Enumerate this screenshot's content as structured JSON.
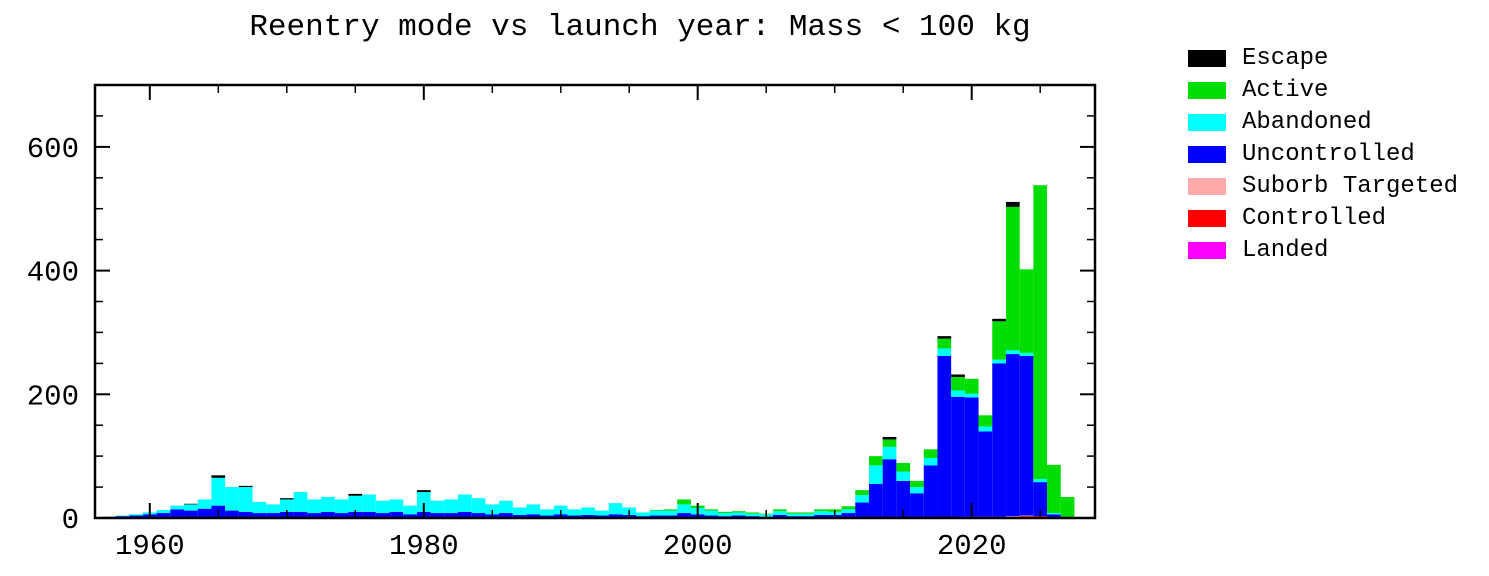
{
  "chart_data": {
    "type": "bar",
    "stacked": true,
    "title": "Reentry mode vs launch year: Mass < 100 kg",
    "xlabel": "",
    "ylabel": "",
    "xlim": [
      1956,
      2029
    ],
    "ylim": [
      0,
      700
    ],
    "x_ticks": [
      1960,
      1980,
      2000,
      2020
    ],
    "y_ticks": [
      0,
      200,
      400,
      600
    ],
    "x_minor_step": 5,
    "y_minor_step": 50,
    "grid": false,
    "legend_position": "right",
    "x": [
      1957,
      1958,
      1959,
      1960,
      1961,
      1962,
      1963,
      1964,
      1965,
      1966,
      1967,
      1968,
      1969,
      1970,
      1971,
      1972,
      1973,
      1974,
      1975,
      1976,
      1977,
      1978,
      1979,
      1980,
      1981,
      1982,
      1983,
      1984,
      1985,
      1986,
      1987,
      1988,
      1989,
      1990,
      1991,
      1992,
      1993,
      1994,
      1995,
      1996,
      1997,
      1998,
      1999,
      2000,
      2001,
      2002,
      2003,
      2004,
      2005,
      2006,
      2007,
      2008,
      2009,
      2010,
      2011,
      2012,
      2013,
      2014,
      2015,
      2016,
      2017,
      2018,
      2019,
      2020,
      2021,
      2022,
      2023,
      2024,
      2025,
      2026,
      2027
    ],
    "series": [
      {
        "name": "Landed",
        "color": "#ff00ff",
        "values": [
          0,
          0,
          0,
          0,
          0,
          0,
          0,
          0,
          0,
          0,
          0,
          0,
          0,
          0,
          0,
          0,
          0,
          0,
          0,
          0,
          0,
          0,
          0,
          0,
          0,
          0,
          0,
          0,
          0,
          0,
          0,
          0,
          0,
          0,
          0,
          0,
          0,
          0,
          0,
          0,
          0,
          0,
          0,
          0,
          0,
          0,
          0,
          0,
          0,
          0,
          0,
          0,
          0,
          0,
          0,
          0,
          0,
          0,
          0,
          0,
          0,
          0,
          0,
          0,
          0,
          0,
          0,
          1,
          1,
          0,
          0
        ]
      },
      {
        "name": "Controlled",
        "color": "#ff0000",
        "values": [
          0,
          0,
          0,
          0,
          0,
          0,
          0,
          0,
          0,
          0,
          0,
          0,
          0,
          0,
          0,
          0,
          0,
          0,
          0,
          0,
          0,
          0,
          0,
          0,
          0,
          0,
          0,
          0,
          0,
          0,
          0,
          0,
          0,
          0,
          0,
          0,
          0,
          0,
          0,
          0,
          0,
          0,
          0,
          0,
          0,
          0,
          0,
          0,
          0,
          0,
          0,
          0,
          0,
          0,
          0,
          0,
          0,
          0,
          0,
          0,
          0,
          0,
          0,
          2,
          2,
          2,
          2,
          2,
          2,
          0,
          0
        ]
      },
      {
        "name": "Suborb Targeted",
        "color": "#ffaaaa",
        "values": [
          0,
          0,
          0,
          0,
          0,
          0,
          0,
          0,
          0,
          0,
          0,
          0,
          0,
          0,
          0,
          0,
          0,
          0,
          0,
          0,
          0,
          0,
          0,
          0,
          0,
          0,
          0,
          0,
          0,
          0,
          0,
          0,
          0,
          0,
          0,
          0,
          0,
          0,
          0,
          0,
          0,
          0,
          0,
          0,
          0,
          0,
          0,
          0,
          0,
          0,
          0,
          0,
          0,
          0,
          0,
          0,
          0,
          0,
          0,
          0,
          0,
          0,
          0,
          0,
          0,
          0,
          1,
          1,
          0,
          0,
          0
        ]
      },
      {
        "name": "Uncontrolled",
        "color": "#0000ff",
        "values": [
          2,
          3,
          4,
          6,
          8,
          14,
          12,
          15,
          20,
          12,
          10,
          8,
          8,
          10,
          10,
          8,
          10,
          8,
          10,
          10,
          8,
          10,
          6,
          10,
          8,
          8,
          10,
          8,
          6,
          8,
          5,
          6,
          4,
          6,
          4,
          5,
          4,
          6,
          5,
          3,
          4,
          4,
          8,
          6,
          4,
          3,
          4,
          3,
          2,
          5,
          3,
          3,
          5,
          5,
          8,
          25,
          55,
          95,
          60,
          40,
          85,
          262,
          196,
          193,
          138,
          248,
          262,
          258,
          55,
          6,
          0
        ]
      },
      {
        "name": "Abandoned",
        "color": "#00ffff",
        "values": [
          0,
          1,
          2,
          3,
          5,
          6,
          10,
          15,
          45,
          38,
          40,
          18,
          14,
          20,
          32,
          22,
          24,
          22,
          26,
          28,
          20,
          20,
          14,
          32,
          20,
          22,
          28,
          24,
          16,
          20,
          12,
          16,
          10,
          14,
          10,
          12,
          8,
          18,
          12,
          6,
          8,
          8,
          14,
          10,
          8,
          5,
          5,
          4,
          4,
          6,
          4,
          4,
          6,
          5,
          6,
          12,
          30,
          20,
          15,
          10,
          12,
          12,
          10,
          6,
          8,
          6,
          6,
          5,
          5,
          2,
          0
        ]
      },
      {
        "name": "Active",
        "color": "#00dd00",
        "values": [
          0,
          0,
          0,
          0,
          0,
          0,
          0,
          0,
          0,
          0,
          0,
          0,
          0,
          0,
          0,
          0,
          0,
          0,
          0,
          0,
          0,
          0,
          0,
          0,
          0,
          0,
          0,
          0,
          0,
          0,
          0,
          0,
          0,
          0,
          0,
          0,
          0,
          0,
          0,
          0,
          1,
          2,
          8,
          4,
          2,
          2,
          2,
          2,
          1,
          3,
          2,
          2,
          3,
          4,
          5,
          8,
          15,
          12,
          14,
          10,
          14,
          16,
          22,
          24,
          18,
          62,
          232,
          135,
          475,
          78,
          34
        ]
      },
      {
        "name": "Escape",
        "color": "#000000",
        "values": [
          0,
          0,
          0,
          0,
          0,
          0,
          1,
          0,
          4,
          0,
          2,
          0,
          0,
          2,
          0,
          0,
          0,
          0,
          3,
          0,
          0,
          0,
          0,
          3,
          0,
          0,
          0,
          0,
          0,
          0,
          0,
          0,
          0,
          0,
          0,
          0,
          0,
          0,
          0,
          0,
          0,
          0,
          0,
          0,
          0,
          0,
          0,
          0,
          0,
          0,
          0,
          0,
          0,
          0,
          0,
          0,
          0,
          4,
          0,
          0,
          0,
          4,
          4,
          0,
          0,
          4,
          8,
          0,
          0,
          0,
          0
        ]
      }
    ]
  },
  "legend": {
    "items": [
      {
        "label": "Escape",
        "color": "#000000"
      },
      {
        "label": "Active",
        "color": "#00dd00"
      },
      {
        "label": "Abandoned",
        "color": "#00ffff"
      },
      {
        "label": "Uncontrolled",
        "color": "#0000ff"
      },
      {
        "label": "Suborb Targeted",
        "color": "#ffaaaa"
      },
      {
        "label": "Controlled",
        "color": "#ff0000"
      },
      {
        "label": "Landed",
        "color": "#ff00ff"
      }
    ]
  }
}
